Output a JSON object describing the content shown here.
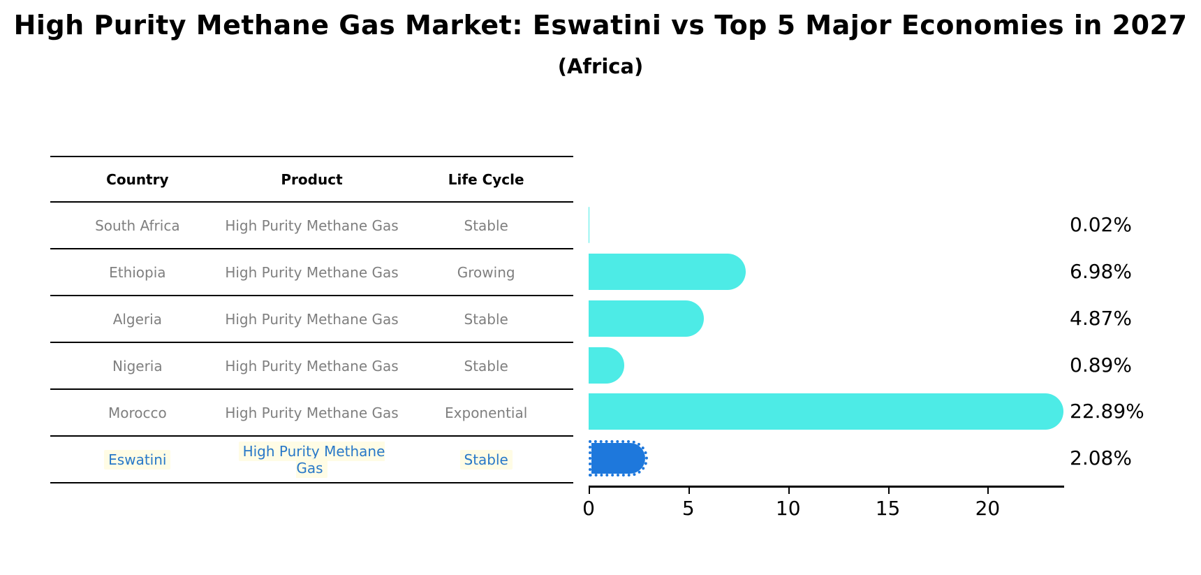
{
  "title": "High Purity Methane Gas Market: Eswatini vs Top 5 Major Economies in 2027",
  "subtitle": "(Africa)",
  "table": {
    "headers": [
      "Country",
      "Product",
      "Life Cycle"
    ],
    "rows": [
      {
        "country": "South Africa",
        "product": "High Purity Methane Gas",
        "life_cycle": "Stable"
      },
      {
        "country": "Ethiopia",
        "product": "High Purity Methane Gas",
        "life_cycle": "Growing"
      },
      {
        "country": "Algeria",
        "product": "High Purity Methane Gas",
        "life_cycle": "Stable"
      },
      {
        "country": "Nigeria",
        "product": "High Purity Methane Gas",
        "life_cycle": "Stable"
      },
      {
        "country": "Morocco",
        "product": "High Purity Methane Gas",
        "life_cycle": "Exponential"
      },
      {
        "country": "Eswatini",
        "product": "High Purity Methane Gas",
        "life_cycle": "Stable"
      }
    ],
    "highlighted_row": "Eswatini"
  },
  "chart_data": {
    "type": "bar",
    "orientation": "horizontal",
    "title": "High Purity Methane Gas Market: Eswatini vs Top 5 Major Economies in 2027",
    "subtitle": "(Africa)",
    "categories": [
      "South Africa",
      "Ethiopia",
      "Algeria",
      "Nigeria",
      "Morocco",
      "Eswatini"
    ],
    "values": [
      0.02,
      6.98,
      4.87,
      0.89,
      22.89,
      2.08
    ],
    "value_labels": [
      "0.02%",
      "6.98%",
      "4.87%",
      "0.89%",
      "22.89%",
      "2.08%"
    ],
    "x_ticks": [
      0,
      5,
      10,
      15,
      20
    ],
    "xlim": [
      0,
      23.8
    ],
    "grid": false,
    "legend": false,
    "bar_color": "#4DEBE6",
    "highlight_color": "#1E78DC",
    "highlight_index": 5,
    "highlight_text_color": "#2878C8"
  }
}
